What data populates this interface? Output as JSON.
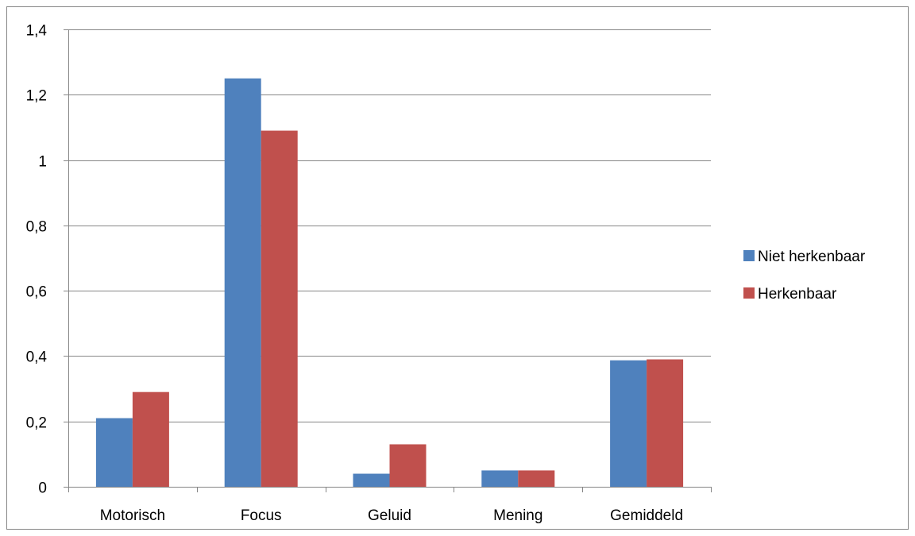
{
  "chart_data": {
    "type": "bar",
    "title": "",
    "xlabel": "",
    "ylabel": "",
    "categories": [
      "Motorisch",
      "Focus",
      "Geluid",
      "Mening",
      "Gemiddeld"
    ],
    "series": [
      {
        "name": "Niet herkenbaar",
        "color": "#4F81BD",
        "values": [
          0.21,
          1.25,
          0.04,
          0.05,
          0.387
        ]
      },
      {
        "name": "Herkenbaar",
        "color": "#C0504D",
        "values": [
          0.29,
          1.09,
          0.13,
          0.05,
          0.39
        ]
      }
    ],
    "ylim": [
      0,
      1.4
    ],
    "yticks": [
      "0",
      "0,2",
      "0,4",
      "0,6",
      "0,8",
      "1",
      "1,2",
      "1,4"
    ],
    "grid": true,
    "legend_position": "right"
  }
}
